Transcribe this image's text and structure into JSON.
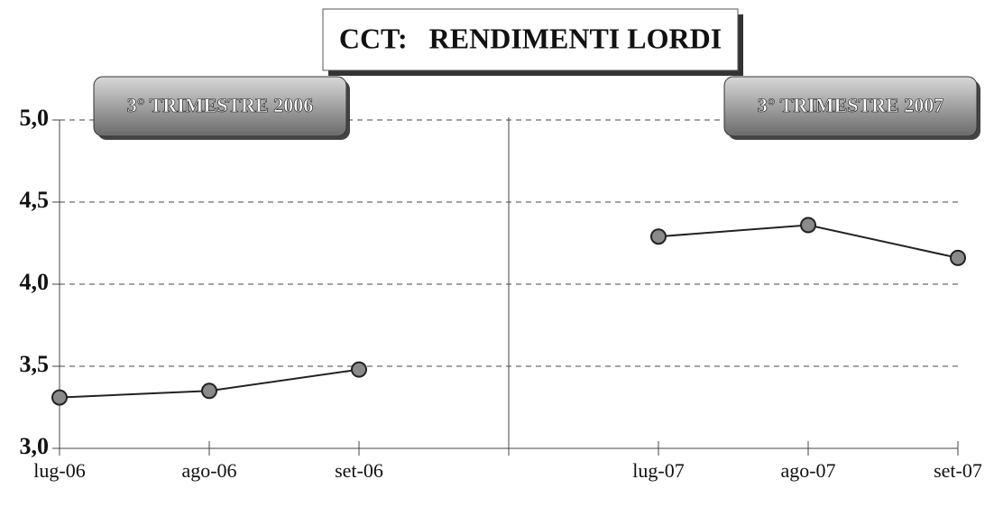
{
  "chart_data": {
    "type": "line",
    "title": "CCT:   RENDIMENTI LORDI",
    "annotations": [
      "3° TRIMESTRE 2006",
      "3° TRIMESTRE 2007"
    ],
    "categories": [
      "lug-06",
      "ago-06",
      "set-06",
      null,
      "lug-07",
      "ago-07",
      "set-07"
    ],
    "series": [
      {
        "color": "#222222",
        "values": [
          3.31,
          3.35,
          3.48,
          null,
          4.29,
          4.36,
          4.16
        ]
      }
    ],
    "ylim": [
      3.0,
      5.0
    ],
    "yticks": [
      {
        "value": 3.0,
        "label": "3,0"
      },
      {
        "value": 3.5,
        "label": "3,5"
      },
      {
        "value": 4.0,
        "label": "4,0"
      },
      {
        "value": 4.5,
        "label": "4,5"
      },
      {
        "value": 5.0,
        "label": "5,0"
      }
    ],
    "grid": true
  }
}
